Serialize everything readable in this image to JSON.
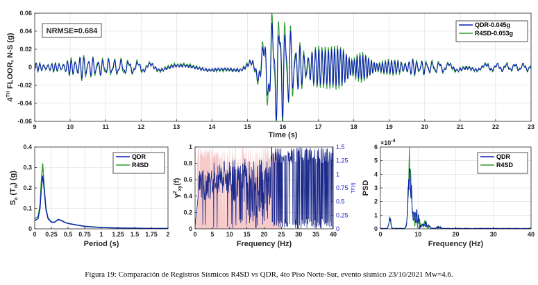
{
  "colors": {
    "qdr": "#0a1fb4",
    "r4sd": "#2e9a2e",
    "coherence_fill": "#f7caca",
    "tf": "#1c2a8c"
  },
  "caption": "Figura 19: Comparación de Registros Sísmicos R4SD vs QDR, 4to Piso Norte-Sur, evento sísmico 23/10/2021 Mw=4.6.",
  "chart_data": [
    {
      "type": "line",
      "xlabel": "Time (s)",
      "ylabel_main": "4",
      "ylabel_sup": "TH",
      "ylabel_rest": " FLOOR, N-S (g)",
      "xlim": [
        9,
        23
      ],
      "ylim": [
        -0.06,
        0.06
      ],
      "xticks": [
        "9",
        "10",
        "11",
        "12",
        "13",
        "14",
        "15",
        "16",
        "17",
        "18",
        "19",
        "20",
        "21",
        "22",
        "23"
      ],
      "yticks": [
        "0.06",
        "0.04",
        "0.02",
        "0",
        "-0.02",
        "-0.04",
        "-0.06"
      ],
      "annotation": "NRMSE=0.684",
      "legend_position": "top-right",
      "series": [
        {
          "name": "QDR-0.045g",
          "peak": 0.045
        },
        {
          "name": "R4SD-0.053g",
          "peak": 0.053
        }
      ]
    },
    {
      "type": "line",
      "xlabel": "Period (s)",
      "ylabel_main": "S",
      "ylabel_sub": "a",
      "ylabel_rest": " (T",
      "ylabel_sub2": "n",
      "ylabel_end": ") (g)",
      "xlim": [
        0,
        2
      ],
      "ylim": [
        0,
        0.4
      ],
      "xticks": [
        "0",
        "0.25",
        "0.5",
        "0.75",
        "1",
        "1.25",
        "1.5",
        "1.75",
        "2"
      ],
      "yticks": [
        "0.4",
        "0.3",
        "0.2",
        "0.1",
        "0"
      ],
      "legend_position": "top-right",
      "series": [
        {
          "name": "QDR",
          "x": [
            0,
            0.05,
            0.08,
            0.1,
            0.12,
            0.14,
            0.17,
            0.2,
            0.25,
            0.3,
            0.35,
            0.4,
            0.45,
            0.5,
            0.6,
            0.75,
            1.0,
            1.25,
            1.5,
            1.75,
            2.0
          ],
          "y": [
            0.04,
            0.05,
            0.1,
            0.2,
            0.26,
            0.2,
            0.09,
            0.05,
            0.032,
            0.032,
            0.045,
            0.04,
            0.032,
            0.026,
            0.02,
            0.012,
            0.006,
            0.004,
            0.003,
            0.002,
            0.002
          ]
        },
        {
          "name": "R4SD",
          "x": [
            0,
            0.05,
            0.08,
            0.1,
            0.12,
            0.14,
            0.17,
            0.2,
            0.25,
            0.3,
            0.35,
            0.4,
            0.45,
            0.5,
            0.6,
            0.75,
            1.0,
            1.25,
            1.5,
            1.75,
            2.0
          ],
          "y": [
            0.05,
            0.06,
            0.12,
            0.24,
            0.32,
            0.22,
            0.1,
            0.055,
            0.034,
            0.033,
            0.047,
            0.042,
            0.033,
            0.027,
            0.021,
            0.013,
            0.007,
            0.004,
            0.003,
            0.002,
            0.002
          ]
        }
      ]
    },
    {
      "type": "area",
      "xlabel": "Frequency (Hz)",
      "ylabel_main": "γ",
      "ylabel_sup": "2",
      "ylabel_sub": "xy",
      "ylabel_rest": "(f)",
      "y2label": "TF(f)",
      "xlim": [
        0,
        40
      ],
      "ylim": [
        0,
        1
      ],
      "y2lim": [
        0,
        1.5
      ],
      "xticks": [
        "0",
        "5",
        "10",
        "15",
        "20",
        "25",
        "30",
        "35",
        "40"
      ],
      "yticks": [
        "1",
        "0.8",
        "0.6",
        "0.4",
        "0.2",
        "0"
      ],
      "y2ticks": [
        "1.5",
        "1.25",
        "1",
        "0.75",
        "0.5",
        "0.25",
        "0"
      ]
    },
    {
      "type": "line",
      "xlabel": "Frequency (Hz)",
      "ylabel_main": "PSD",
      "multiplier": "×10",
      "multiplier_exp": "-4",
      "xlim": [
        0,
        40
      ],
      "ylim": [
        0,
        6
      ],
      "xticks": [
        "0",
        "10",
        "20",
        "30",
        "40"
      ],
      "yticks": [
        "6",
        "5",
        "4",
        "3",
        "2",
        "1",
        "0"
      ],
      "legend_position": "top-right",
      "series": [
        {
          "name": "QDR",
          "peak_freq": 7.8,
          "peak": 3.8
        },
        {
          "name": "R4SD",
          "peak_freq": 7.8,
          "peak": 5.3
        }
      ]
    }
  ]
}
